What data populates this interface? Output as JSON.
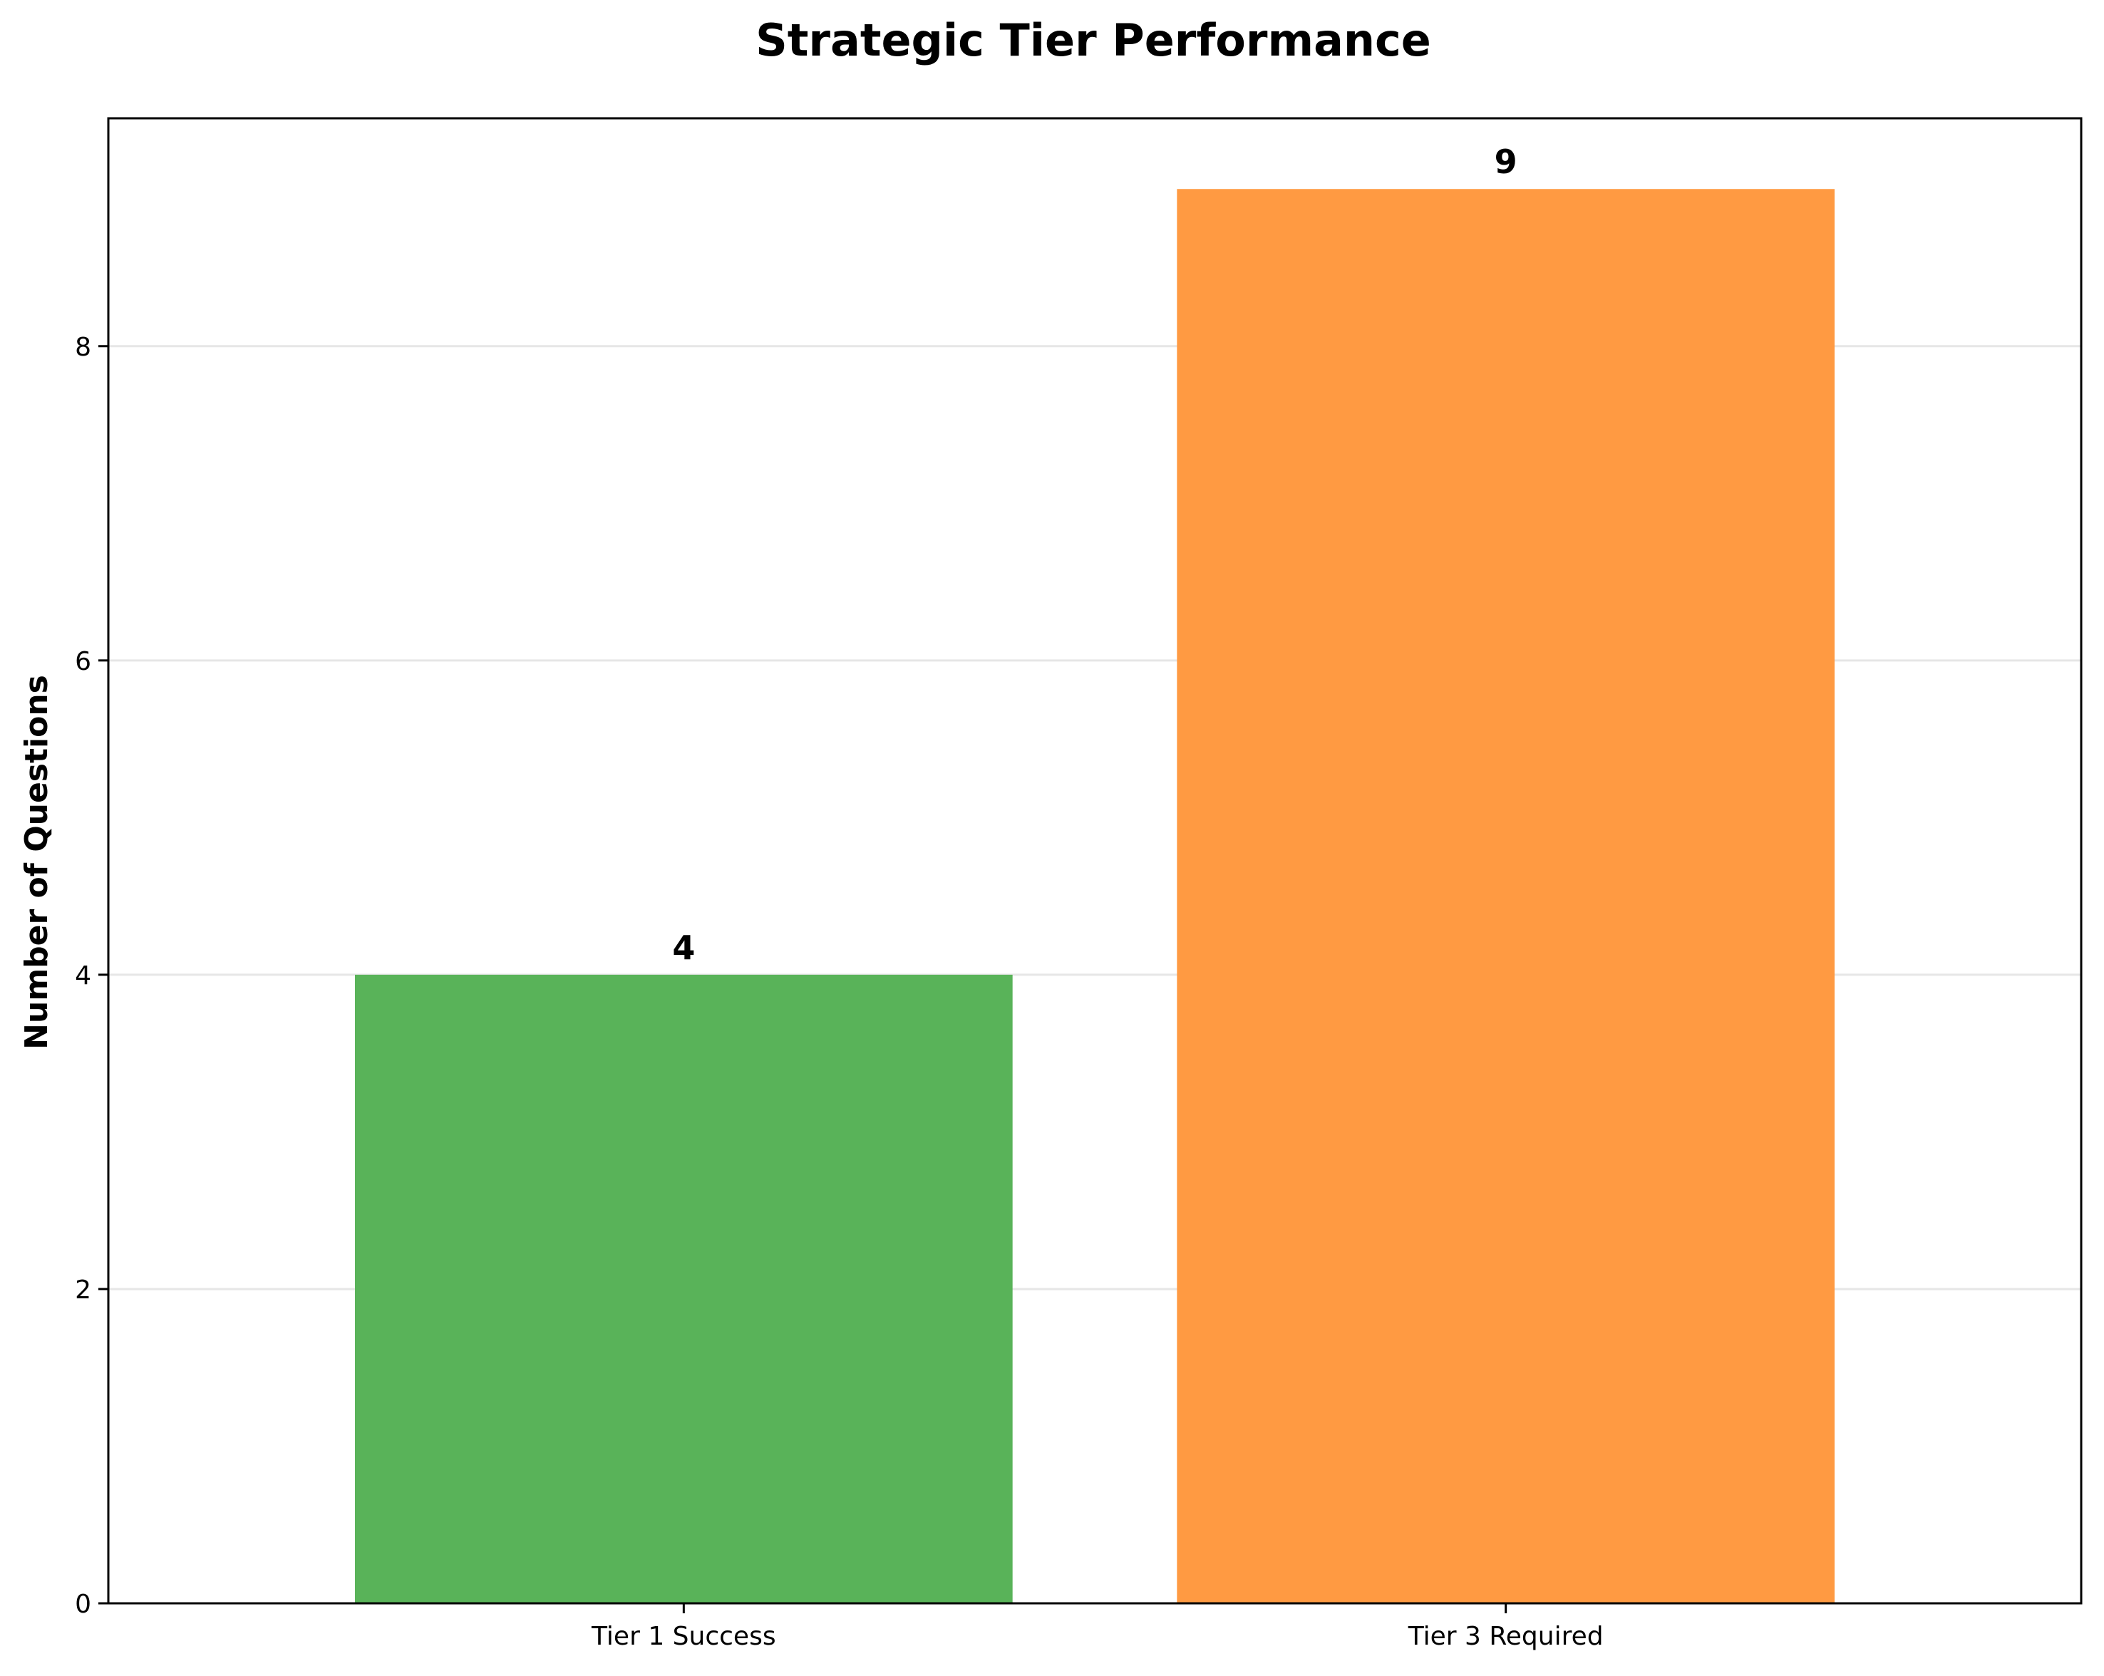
{
  "chart_data": {
    "type": "bar",
    "title": "Strategic Tier Performance",
    "xlabel": "",
    "ylabel": "Number of Questions",
    "categories": [
      "Tier 1 Success",
      "Tier 3 Required"
    ],
    "values": [
      4,
      9
    ],
    "data_labels": [
      "4",
      "9"
    ],
    "colors": [
      "#59b359",
      "#ff9a42"
    ],
    "ylim": [
      0,
      9.45
    ],
    "yticks": [
      0,
      2,
      4,
      6,
      8
    ],
    "ytick_labels": [
      "0",
      "2",
      "4",
      "6",
      "8"
    ],
    "grid": "y-axis only"
  }
}
